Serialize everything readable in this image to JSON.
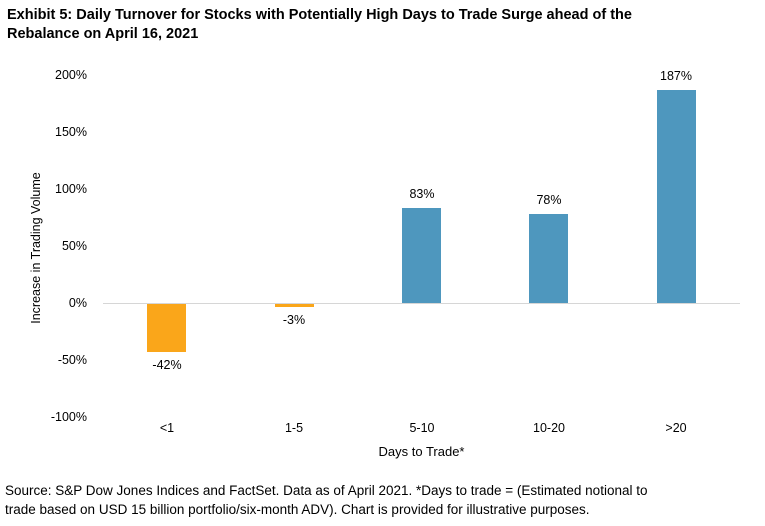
{
  "header": {
    "title_lines": [
      "Exhibit 5: Daily Turnover for Stocks with Potentially High Days to Trade Surge ahead of the",
      "Rebalance on April 16, 2021"
    ]
  },
  "footer": {
    "source_lines": [
      "Source: S&P Dow Jones Indices and FactSet. Data as of April 2021. *Days to trade = (Estimated notional to",
      "trade based on USD 15 billion portfolio/six-month ADV). Chart is provided for illustrative purposes."
    ]
  },
  "chart_data": {
    "type": "bar",
    "title": "Exhibit 5: Daily Turnover for Stocks with Potentially High Days to Trade Surge ahead of the Rebalance on April 16, 2021",
    "categories": [
      "<1",
      "1-5",
      "5-10",
      "10-20",
      ">20"
    ],
    "values": [
      -42,
      -3,
      83,
      78,
      187
    ],
    "value_labels": [
      "-42%",
      "-3%",
      "83%",
      "78%",
      "187%"
    ],
    "bar_colors": [
      "#FAA61A",
      "#FAA61A",
      "#4E97BE",
      "#4E97BE",
      "#4E97BE"
    ],
    "xlabel": "Days to Trade*",
    "ylabel": "Increase in Trading Volume",
    "ylim": [
      -100,
      200
    ],
    "yticks": [
      200,
      150,
      100,
      50,
      0,
      -50,
      -100
    ],
    "ytick_suffix": "%",
    "grid": false,
    "legend": "none",
    "zero_line_color": "#D6D6D6",
    "accent_colors": {
      "negative": "#FAA61A",
      "positive": "#4E97BE"
    }
  }
}
